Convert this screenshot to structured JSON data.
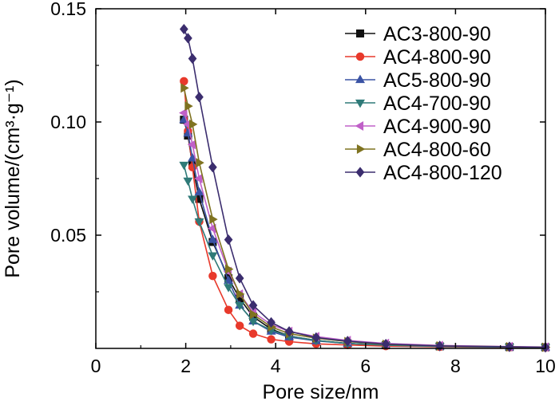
{
  "chart_data": {
    "type": "line",
    "title": "",
    "xlabel": "Pore size/nm",
    "ylabel": "Pore volume/(cm³·g⁻¹)",
    "xlim": [
      0,
      10
    ],
    "ylim": [
      0,
      0.15
    ],
    "xticks": [
      0,
      2,
      4,
      6,
      8,
      10
    ],
    "xtick_labels": [
      "0",
      "2",
      "4",
      "6",
      "8",
      "10"
    ],
    "yticks": [
      0.05,
      0.1,
      0.15
    ],
    "ytick_labels": [
      "0.05",
      "0.10",
      "0.15"
    ],
    "legend_position": "top-right",
    "grid": false,
    "series": [
      {
        "name": "AC3-800-90",
        "color": "#111111",
        "marker": "square",
        "x": [
          1.96,
          2.05,
          2.15,
          2.3,
          2.6,
          2.95,
          3.2,
          3.5,
          3.9,
          4.3,
          4.9,
          5.6,
          6.45,
          7.65,
          9.2,
          10.0
        ],
        "y": [
          0.101,
          0.094,
          0.081,
          0.066,
          0.047,
          0.031,
          0.022,
          0.014,
          0.0085,
          0.0055,
          0.0035,
          0.0022,
          0.0014,
          0.0009,
          0.0006,
          0.0005
        ]
      },
      {
        "name": "AC4-800-90",
        "color": "#e8392b",
        "marker": "circle",
        "x": [
          1.96,
          2.05,
          2.15,
          2.3,
          2.6,
          2.95,
          3.2,
          3.5,
          3.9,
          4.3,
          4.9,
          5.6,
          6.45,
          7.65,
          9.2,
          10.0
        ],
        "y": [
          0.118,
          0.096,
          0.08,
          0.056,
          0.032,
          0.017,
          0.01,
          0.0065,
          0.004,
          0.003,
          0.002,
          0.0015,
          0.001,
          0.0007,
          0.0005,
          0.0004
        ]
      },
      {
        "name": "AC5-800-90",
        "color": "#3a53a4",
        "marker": "triangle-up",
        "x": [
          1.96,
          2.05,
          2.15,
          2.3,
          2.6,
          2.95,
          3.2,
          3.5,
          3.9,
          4.3,
          4.9,
          5.6,
          6.45,
          7.65,
          9.2,
          10.0
        ],
        "y": [
          0.101,
          0.095,
          0.084,
          0.069,
          0.048,
          0.03,
          0.019,
          0.012,
          0.0075,
          0.005,
          0.0033,
          0.0022,
          0.0014,
          0.0009,
          0.0006,
          0.0005
        ]
      },
      {
        "name": "AC4-700-90",
        "color": "#2f7a78",
        "marker": "triangle-down",
        "x": [
          1.96,
          2.05,
          2.15,
          2.3,
          2.6,
          2.95,
          3.2,
          3.5,
          3.9,
          4.3,
          4.9,
          5.6,
          6.45,
          7.65,
          9.2,
          10.0
        ],
        "y": [
          0.081,
          0.074,
          0.066,
          0.056,
          0.041,
          0.027,
          0.019,
          0.012,
          0.008,
          0.0055,
          0.0035,
          0.0022,
          0.0014,
          0.0009,
          0.0006,
          0.0005
        ]
      },
      {
        "name": "AC4-900-90",
        "color": "#c060c8",
        "marker": "triangle-left",
        "x": [
          1.96,
          2.05,
          2.15,
          2.3,
          2.6,
          2.95,
          3.2,
          3.5,
          3.9,
          4.3,
          4.9,
          5.6,
          6.45,
          7.65,
          9.2,
          10.0
        ],
        "y": [
          0.104,
          0.099,
          0.09,
          0.075,
          0.053,
          0.034,
          0.024,
          0.016,
          0.0105,
          0.0075,
          0.0052,
          0.0035,
          0.0022,
          0.0013,
          0.0008,
          0.0006
        ]
      },
      {
        "name": "AC4-800-60",
        "color": "#7f7320",
        "marker": "triangle-right",
        "x": [
          1.96,
          2.05,
          2.15,
          2.3,
          2.6,
          2.95,
          3.2,
          3.5,
          3.9,
          4.3,
          4.9,
          5.6,
          6.45,
          7.65,
          9.2,
          10.0
        ],
        "y": [
          0.115,
          0.107,
          0.099,
          0.082,
          0.057,
          0.035,
          0.024,
          0.015,
          0.0095,
          0.0065,
          0.0045,
          0.003,
          0.0018,
          0.0011,
          0.0007,
          0.0005
        ]
      },
      {
        "name": "AC4-800-120",
        "color": "#3b2d6e",
        "marker": "diamond",
        "x": [
          1.96,
          2.05,
          2.15,
          2.3,
          2.6,
          2.95,
          3.2,
          3.5,
          3.9,
          4.3,
          4.9,
          5.6,
          6.45,
          7.65,
          9.2,
          10.0
        ],
        "y": [
          0.141,
          0.137,
          0.128,
          0.111,
          0.08,
          0.048,
          0.031,
          0.019,
          0.0115,
          0.0075,
          0.0048,
          0.0032,
          0.0019,
          0.0011,
          0.0007,
          0.0005
        ]
      }
    ]
  }
}
